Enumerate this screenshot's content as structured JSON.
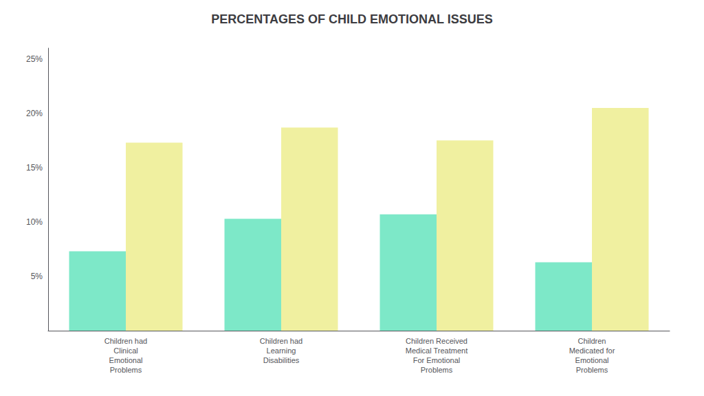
{
  "chart_data": {
    "type": "bar",
    "title": "PERCENTAGES OF CHILD EMOTIONAL ISSUES",
    "categories": [
      "Children had\nClinical\nEmotional\nProblems",
      "Children had\nLearning\nDisabilities",
      "Children Received\nMedical Treatment\nFor Emotional\nProblems",
      "Children\nMedicated for\nEmotional\nProblems"
    ],
    "series": [
      {
        "color": "#7de8c8",
        "values": [
          7.3,
          10.3,
          10.7,
          6.3
        ]
      },
      {
        "color": "#f0f0a0",
        "values": [
          17.3,
          18.7,
          17.5,
          20.5
        ]
      }
    ],
    "ylim": [
      0,
      26
    ],
    "yticks": [
      {
        "value": 5,
        "label": "5%"
      },
      {
        "value": 10,
        "label": "10%"
      },
      {
        "value": 15,
        "label": "15%"
      },
      {
        "value": 20,
        "label": "20%"
      },
      {
        "value": 25,
        "label": "25%"
      }
    ],
    "grid": false
  }
}
